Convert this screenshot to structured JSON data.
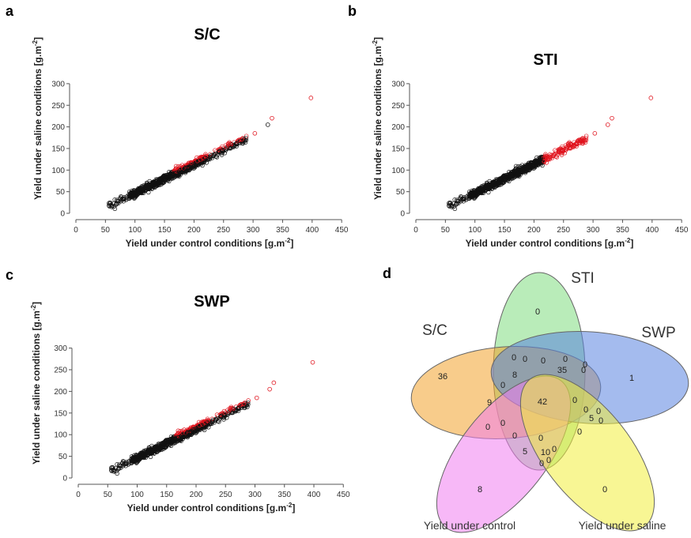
{
  "chart_data": [
    {
      "panel": "a",
      "type": "scatter",
      "title": "S/C",
      "xlabel": "Yield under control conditions [g.m",
      "ylabel": "Yield under saline conditions [g.m",
      "unit_exp": "-2",
      "xlim": [
        0,
        450
      ],
      "ylim": [
        0,
        300
      ],
      "xticks": [
        "0",
        "50",
        "100",
        "150",
        "200",
        "250",
        "300",
        "350",
        "400",
        "450"
      ],
      "yticks": [
        "0",
        "50",
        "100",
        "150",
        "200",
        "250",
        "300"
      ],
      "series_colors": {
        "selected": "#e0141e",
        "other": "#111111"
      },
      "outliers": [
        {
          "x": 398,
          "y": 267
        },
        {
          "x": 332,
          "y": 220
        },
        {
          "x": 325,
          "y": 205
        },
        {
          "x": 303,
          "y": 185
        }
      ]
    },
    {
      "panel": "b",
      "type": "scatter",
      "title": "STI",
      "xlabel": "Yield under control conditions [g.m",
      "ylabel": "Yield under saline conditions [g.m",
      "unit_exp": "-2",
      "xlim": [
        0,
        450
      ],
      "ylim": [
        0,
        300
      ],
      "xticks": [
        "0",
        "50",
        "100",
        "150",
        "200",
        "250",
        "300",
        "350",
        "400",
        "450"
      ],
      "yticks": [
        "0",
        "50",
        "100",
        "150",
        "200",
        "250",
        "300"
      ],
      "series_colors": {
        "selected": "#e0141e",
        "other": "#111111"
      },
      "outliers": [
        {
          "x": 398,
          "y": 267
        },
        {
          "x": 332,
          "y": 220
        },
        {
          "x": 325,
          "y": 205
        },
        {
          "x": 303,
          "y": 185
        }
      ]
    },
    {
      "panel": "c",
      "type": "scatter",
      "title": "SWP",
      "xlabel": "Yield under control conditions [g.m",
      "ylabel": "Yield under saline conditions [g.m",
      "unit_exp": "-2",
      "xlim": [
        0,
        450
      ],
      "ylim": [
        0,
        300
      ],
      "xticks": [
        "0",
        "50",
        "100",
        "150",
        "200",
        "250",
        "300",
        "350",
        "400",
        "450"
      ],
      "yticks": [
        "0",
        "50",
        "100",
        "150",
        "200",
        "250",
        "300"
      ],
      "series_colors": {
        "selected": "#e0141e",
        "other": "#111111"
      },
      "outliers": [
        {
          "x": 398,
          "y": 267
        },
        {
          "x": 332,
          "y": 220
        },
        {
          "x": 325,
          "y": 205
        },
        {
          "x": 303,
          "y": 185
        }
      ]
    }
  ],
  "venn": {
    "panel": "d",
    "sets": [
      {
        "name": "STI",
        "color": "#7fdc7f"
      },
      {
        "name": "S/C",
        "color": "#f2a22c"
      },
      {
        "name": "SWP",
        "color": "#5a83e0"
      },
      {
        "name": "Yield under control",
        "color": "#f07ef0"
      },
      {
        "name": "Yield under saline",
        "color": "#f2ee3c"
      }
    ],
    "counts": [
      "0",
      "36",
      "1",
      "8",
      "0",
      "42",
      "35",
      "8",
      "9",
      "0",
      "0",
      "0",
      "0",
      "0",
      "0",
      "0",
      "0",
      "0",
      "0",
      "0",
      "5",
      "0",
      "5",
      "10",
      "0",
      "0",
      "0",
      "0",
      "0",
      "0",
      "0"
    ]
  }
}
